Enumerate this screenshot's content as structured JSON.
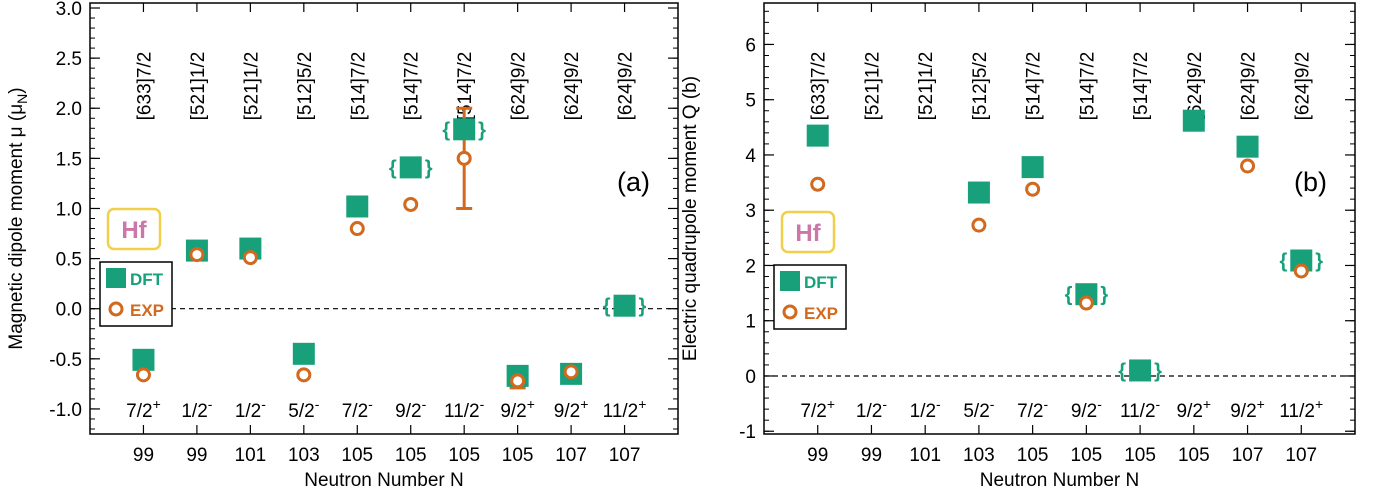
{
  "colors": {
    "dft": "#17a07a",
    "exp": "#d2691e",
    "element_label": "#cc77a8",
    "element_box": "#f0d04a"
  },
  "chart_data": [
    {
      "type": "scatter",
      "panel_tag": "(a)",
      "xlabel": "Neutron Number N",
      "ylabel_main": "Magnetic dipole moment μ (μ",
      "ylabel_sub": "N",
      "ylabel_end": ")",
      "ylim": [
        -1.25,
        3.05
      ],
      "yticks": [
        -1.0,
        -0.5,
        0.0,
        0.5,
        1.0,
        1.5,
        2.0,
        2.5,
        3.0
      ],
      "ytick_labels": [
        "-1.0",
        "-0.5",
        "0.0",
        "0.5",
        "1.0",
        "1.5",
        "2.0",
        "2.5",
        "3.0"
      ],
      "zero_line": true,
      "categories": [
        "99",
        "99",
        "101",
        "103",
        "105",
        "105",
        "105",
        "105",
        "107",
        "107"
      ],
      "orbitals": [
        "[633]7/2",
        "[521]1/2",
        "[521]1/2",
        "[512]5/2",
        "[514]7/2",
        "[514]7/2",
        "[514]7/2",
        "[624]9/2",
        "[624]9/2",
        "[624]9/2"
      ],
      "states": [
        {
          "spin": "7/2",
          "parity": "+"
        },
        {
          "spin": "1/2",
          "parity": "-"
        },
        {
          "spin": "1/2",
          "parity": "-"
        },
        {
          "spin": "5/2",
          "parity": "-"
        },
        {
          "spin": "7/2",
          "parity": "-"
        },
        {
          "spin": "9/2",
          "parity": "-"
        },
        {
          "spin": "11/2",
          "parity": "-"
        },
        {
          "spin": "9/2",
          "parity": "+"
        },
        {
          "spin": "9/2",
          "parity": "+"
        },
        {
          "spin": "11/2",
          "parity": "+"
        }
      ],
      "series": [
        {
          "name": "DFT",
          "marker": "square",
          "values": [
            -0.51,
            0.58,
            0.6,
            -0.45,
            1.02,
            1.41,
            1.79,
            -0.67,
            -0.65,
            0.03
          ],
          "braced": [
            false,
            false,
            false,
            false,
            false,
            true,
            true,
            false,
            false,
            true
          ]
        },
        {
          "name": "EXP",
          "marker": "circle",
          "values": [
            -0.66,
            0.54,
            0.51,
            -0.66,
            0.8,
            1.04,
            1.5,
            -0.72,
            -0.63,
            null
          ],
          "errors": [
            null,
            null,
            null,
            null,
            null,
            null,
            0.5,
            0.07,
            null,
            null
          ]
        }
      ],
      "legend": {
        "element": "Hf",
        "entries": [
          "DFT",
          "EXP"
        ],
        "placement": "left"
      }
    },
    {
      "type": "scatter",
      "panel_tag": "(b)",
      "xlabel": "Neutron Number N",
      "ylabel_main": "Electric quadrupole moment Q (b)",
      "ylabel_sub": "",
      "ylabel_end": "",
      "ylim": [
        -1.05,
        6.75
      ],
      "yticks": [
        -1,
        0,
        1,
        2,
        3,
        4,
        5,
        6
      ],
      "ytick_labels": [
        "-1",
        "0",
        "1",
        "2",
        "3",
        "4",
        "5",
        "6"
      ],
      "zero_line": true,
      "categories": [
        "99",
        "99",
        "101",
        "103",
        "105",
        "105",
        "105",
        "105",
        "107",
        "107"
      ],
      "orbitals": [
        "[633]7/2",
        "[521]1/2",
        "[521]1/2",
        "[512]5/2",
        "[514]7/2",
        "[514]7/2",
        "[514]7/2",
        "[624]9/2",
        "[624]9/2",
        "[624]9/2"
      ],
      "states": [
        {
          "spin": "7/2",
          "parity": "+"
        },
        {
          "spin": "1/2",
          "parity": "-"
        },
        {
          "spin": "1/2",
          "parity": "-"
        },
        {
          "spin": "5/2",
          "parity": "-"
        },
        {
          "spin": "7/2",
          "parity": "-"
        },
        {
          "spin": "9/2",
          "parity": "-"
        },
        {
          "spin": "11/2",
          "parity": "-"
        },
        {
          "spin": "9/2",
          "parity": "+"
        },
        {
          "spin": "9/2",
          "parity": "+"
        },
        {
          "spin": "11/2",
          "parity": "+"
        }
      ],
      "series": [
        {
          "name": "DFT",
          "marker": "square",
          "values": [
            4.35,
            null,
            null,
            3.32,
            3.78,
            1.48,
            0.1,
            4.62,
            4.15,
            2.09
          ],
          "braced": [
            false,
            false,
            false,
            false,
            false,
            true,
            true,
            false,
            false,
            true
          ]
        },
        {
          "name": "EXP",
          "marker": "circle",
          "values": [
            3.47,
            null,
            null,
            2.73,
            3.38,
            1.32,
            null,
            null,
            3.8,
            1.9
          ],
          "errors": [
            null,
            null,
            null,
            null,
            null,
            null,
            null,
            null,
            null,
            null
          ]
        }
      ],
      "legend": {
        "element": "Hf",
        "entries": [
          "DFT",
          "EXP"
        ],
        "placement": "left"
      }
    }
  ]
}
